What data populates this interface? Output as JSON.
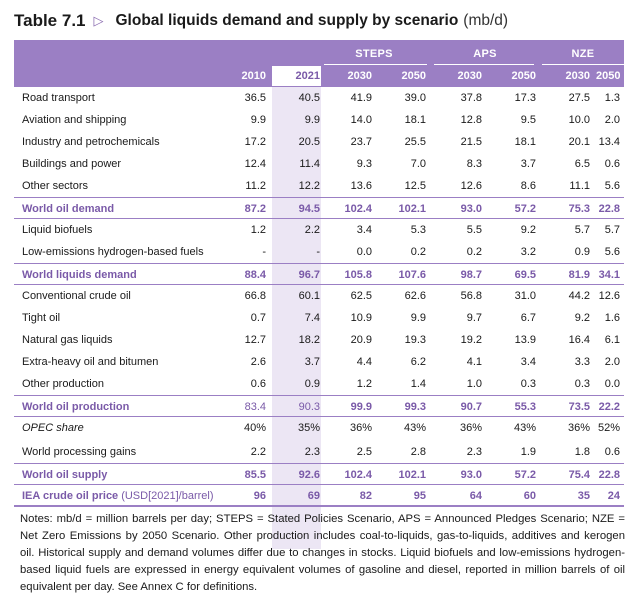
{
  "title": {
    "number": "Table 7.1",
    "arrow": "▷",
    "main": "Global liquids demand and supply by scenario",
    "unit": "(mb/d)"
  },
  "header": {
    "scenarios": [
      "STEPS",
      "APS",
      "NZE"
    ],
    "years": [
      "2010",
      "2021",
      "2030",
      "2050",
      "2030",
      "2050",
      "2030",
      "2050"
    ]
  },
  "sections": [
    {
      "rows": [
        {
          "label": "Road transport",
          "values": [
            "36.5",
            "40.5",
            "41.9",
            "39.0",
            "37.8",
            "17.3",
            "27.5",
            "1.3"
          ]
        },
        {
          "label": "Aviation and shipping",
          "values": [
            "9.9",
            "9.9",
            "14.0",
            "18.1",
            "12.8",
            "9.5",
            "10.0",
            "2.0"
          ]
        },
        {
          "label": "Industry and petrochemicals",
          "values": [
            "17.2",
            "20.5",
            "23.7",
            "25.5",
            "21.5",
            "18.1",
            "20.1",
            "13.4"
          ]
        },
        {
          "label": "Buildings and power",
          "values": [
            "12.4",
            "11.4",
            "9.3",
            "7.0",
            "8.3",
            "3.7",
            "6.5",
            "0.6"
          ]
        },
        {
          "label": "Other sectors",
          "values": [
            "11.2",
            "12.2",
            "13.6",
            "12.5",
            "12.6",
            "8.6",
            "11.1",
            "5.6"
          ]
        }
      ],
      "total": {
        "label": "World oil demand",
        "values": [
          "87.2",
          "94.5",
          "102.4",
          "102.1",
          "93.0",
          "57.2",
          "75.3",
          "22.8"
        ]
      }
    },
    {
      "rows": [
        {
          "label": "Liquid biofuels",
          "values": [
            "1.2",
            "2.2",
            "3.4",
            "5.3",
            "5.5",
            "9.2",
            "5.7",
            "5.7"
          ]
        },
        {
          "label": "Low-emissions hydrogen-based fuels",
          "values": [
            "-",
            "-",
            "0.0",
            "0.2",
            "0.2",
            "3.2",
            "0.9",
            "5.6"
          ]
        }
      ],
      "total": {
        "label": "World liquids demand",
        "values": [
          "88.4",
          "96.7",
          "105.8",
          "107.6",
          "98.7",
          "69.5",
          "81.9",
          "34.1"
        ]
      }
    },
    {
      "rows": [
        {
          "label": "Conventional crude oil",
          "values": [
            "66.8",
            "60.1",
            "62.5",
            "62.6",
            "56.8",
            "31.0",
            "44.2",
            "12.6"
          ]
        },
        {
          "label": "Tight oil",
          "values": [
            "0.7",
            "7.4",
            "10.9",
            "9.9",
            "9.7",
            "6.7",
            "9.2",
            "1.6"
          ]
        },
        {
          "label": "Natural gas liquids",
          "values": [
            "12.7",
            "18.2",
            "20.9",
            "19.3",
            "19.2",
            "13.9",
            "16.4",
            "6.1"
          ]
        },
        {
          "label": "Extra-heavy oil and bitumen",
          "values": [
            "2.6",
            "3.7",
            "4.4",
            "6.2",
            "4.1",
            "3.4",
            "3.3",
            "2.0"
          ]
        },
        {
          "label": "Other production",
          "values": [
            "0.6",
            "0.9",
            "1.2",
            "1.4",
            "1.0",
            "0.3",
            "0.3",
            "0.0"
          ]
        }
      ],
      "total": {
        "label": "World oil production",
        "values": [
          "83.4",
          "90.3",
          "99.9",
          "99.3",
          "90.7",
          "55.3",
          "73.5",
          "22.2"
        ]
      }
    }
  ],
  "opec_share": {
    "label": "OPEC share",
    "values": [
      "40%",
      "35%",
      "36%",
      "43%",
      "36%",
      "43%",
      "36%",
      "52%"
    ]
  },
  "processing_gains": {
    "label": "World processing gains",
    "values": [
      "2.2",
      "2.3",
      "2.5",
      "2.8",
      "2.3",
      "1.9",
      "1.8",
      "0.6"
    ]
  },
  "oil_supply": {
    "label": "World oil supply",
    "values": [
      "85.5",
      "92.6",
      "102.4",
      "102.1",
      "93.0",
      "57.2",
      "75.4",
      "22.8"
    ]
  },
  "crude_price": {
    "label": "IEA crude oil price",
    "unit": "(USD[2021]/barrel)",
    "values": [
      "96",
      "69",
      "82",
      "95",
      "64",
      "60",
      "35",
      "24"
    ]
  },
  "notes": "Notes: mb/d = million barrels per day; STEPS = Stated Policies Scenario, APS = Announced Pledges Scenario; NZE = Net Zero Emissions by 2050 Scenario. Other production includes coal-to-liquids, gas-to-liquids, additives and kerogen oil. Historical supply and demand volumes differ due to changes in stocks. Liquid biofuels and low-emissions hydrogen-based liquid fuels are expressed in energy equivalent volumes of gasoline and diesel, reported in million barrels of oil equivalent per day. See Annex C for definitions.",
  "colors": {
    "accent": "#9b7fc4",
    "accent_text": "#7a5aa8",
    "highlight_col": "#ece6f4"
  }
}
